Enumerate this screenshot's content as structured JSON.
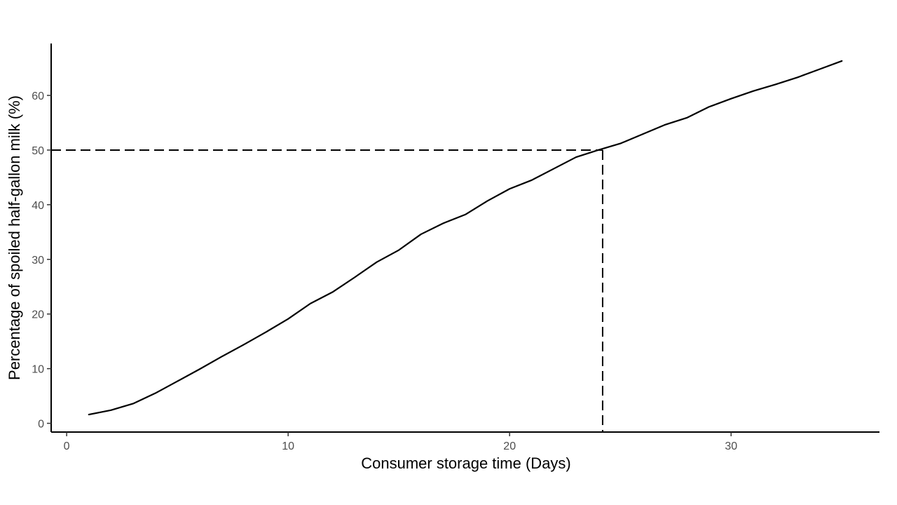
{
  "chart_data": {
    "type": "line",
    "title": "",
    "xlabel": "Consumer storage time (Days)",
    "ylabel": "Percentage of spoiled half-gallon milk (%)",
    "xlim": [
      -0.7,
      36.7
    ],
    "ylim": [
      -1.6,
      69.5
    ],
    "x_ticks": [
      0,
      10,
      20,
      30
    ],
    "y_ticks": [
      0,
      10,
      20,
      30,
      40,
      50,
      60
    ],
    "grid": false,
    "series": [
      {
        "name": "",
        "color": "#000000",
        "x": [
          1,
          2,
          3,
          4,
          5,
          6,
          7,
          8,
          9,
          10,
          11,
          12,
          13,
          14,
          15,
          16,
          17,
          18,
          19,
          20,
          21,
          22,
          23,
          24,
          25,
          26,
          27,
          28,
          29,
          30,
          31,
          32,
          33,
          34,
          35
        ],
        "y": [
          1.6,
          2.4,
          3.6,
          5.5,
          7.7,
          9.9,
          12.2,
          14.4,
          16.7,
          19.1,
          21.9,
          24.0,
          26.7,
          29.5,
          31.7,
          34.6,
          36.6,
          38.2,
          40.7,
          42.9,
          44.5,
          46.6,
          48.7,
          50.0,
          51.2,
          52.9,
          54.6,
          55.9,
          57.9,
          59.4,
          60.8,
          62.0,
          63.3,
          64.8,
          66.3
        ]
      }
    ],
    "reference_lines": {
      "style": "dashed",
      "color": "#000000",
      "x": 24.2,
      "y": 50
    }
  }
}
